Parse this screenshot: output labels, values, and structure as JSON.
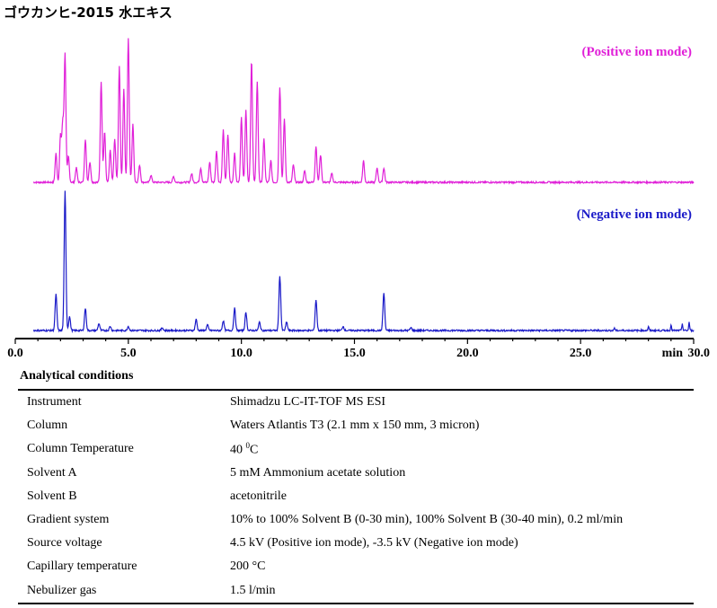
{
  "title": "ゴウカンヒ-2015 水エキス",
  "chart_data": {
    "type": "line",
    "x_axis": {
      "unit_label": "min",
      "range": [
        0,
        30
      ],
      "tick_values": [
        0,
        5,
        10,
        15,
        20,
        25,
        30
      ],
      "tick_labels": [
        "0.0",
        "5.0",
        "10.0",
        "15.0",
        "20.0",
        "25.0",
        "30.0"
      ]
    },
    "y_axis": {
      "ticks_shown": false
    },
    "series": [
      {
        "name": "(Positive ion mode)",
        "color": "#e020d8",
        "baseline_start": 0.8,
        "peaks": [
          [
            1.8,
            0.2
          ],
          [
            2.0,
            0.32
          ],
          [
            2.1,
            0.4
          ],
          [
            2.2,
            0.88
          ],
          [
            2.35,
            0.18
          ],
          [
            2.7,
            0.1
          ],
          [
            3.1,
            0.3
          ],
          [
            3.3,
            0.14
          ],
          [
            3.8,
            0.7
          ],
          [
            3.95,
            0.35
          ],
          [
            4.2,
            0.22
          ],
          [
            4.4,
            0.3
          ],
          [
            4.6,
            0.8
          ],
          [
            4.8,
            0.65
          ],
          [
            5.0,
            1.0
          ],
          [
            5.2,
            0.4
          ],
          [
            5.5,
            0.12
          ],
          [
            6.0,
            0.05
          ],
          [
            7.0,
            0.04
          ],
          [
            7.8,
            0.06
          ],
          [
            8.2,
            0.1
          ],
          [
            8.6,
            0.14
          ],
          [
            8.9,
            0.22
          ],
          [
            9.2,
            0.36
          ],
          [
            9.4,
            0.33
          ],
          [
            9.7,
            0.2
          ],
          [
            10.0,
            0.45
          ],
          [
            10.2,
            0.5
          ],
          [
            10.45,
            0.84
          ],
          [
            10.7,
            0.7
          ],
          [
            11.0,
            0.3
          ],
          [
            11.3,
            0.15
          ],
          [
            11.7,
            0.66
          ],
          [
            11.9,
            0.44
          ],
          [
            12.3,
            0.12
          ],
          [
            12.8,
            0.08
          ],
          [
            13.3,
            0.25
          ],
          [
            13.5,
            0.19
          ],
          [
            14.0,
            0.06
          ],
          [
            15.4,
            0.15
          ],
          [
            16.0,
            0.1
          ],
          [
            16.3,
            0.1
          ]
        ]
      },
      {
        "name": "(Negative ion mode)",
        "color": "#1a1ac8",
        "baseline_start": 0.8,
        "peaks": [
          [
            1.8,
            0.26
          ],
          [
            2.2,
            1.0
          ],
          [
            2.4,
            0.1
          ],
          [
            3.1,
            0.16
          ],
          [
            3.7,
            0.05
          ],
          [
            4.2,
            0.03
          ],
          [
            5.0,
            0.03
          ],
          [
            6.5,
            0.02
          ],
          [
            8.0,
            0.08
          ],
          [
            8.5,
            0.04
          ],
          [
            9.2,
            0.07
          ],
          [
            9.7,
            0.16
          ],
          [
            10.2,
            0.13
          ],
          [
            10.8,
            0.06
          ],
          [
            11.7,
            0.39
          ],
          [
            12.0,
            0.06
          ],
          [
            13.3,
            0.22
          ],
          [
            14.5,
            0.03
          ],
          [
            16.3,
            0.27
          ],
          [
            17.5,
            0.02
          ],
          [
            26.5,
            0.02
          ],
          [
            28.0,
            0.03
          ],
          [
            29.0,
            0.04
          ],
          [
            29.5,
            0.05
          ],
          [
            29.8,
            0.06
          ]
        ]
      }
    ]
  },
  "conditions": {
    "heading": "Analytical conditions",
    "rows": [
      {
        "label": "Instrument",
        "value": "Shimadzu LC-IT-TOF MS ESI"
      },
      {
        "label": "Column",
        "value": "Waters Atlantis T3 (2.1 mm x 150 mm, 3 micron)"
      },
      {
        "label": "Column Temperature",
        "value": "40 ",
        "sup": "0",
        "suffix": "C"
      },
      {
        "label": "Solvent A",
        "value": "5 mM Ammonium acetate solution"
      },
      {
        "label": "Solvent B",
        "value": "acetonitrile"
      },
      {
        "label": "Gradient system",
        "value": "10% to 100% Solvent B (0-30 min), 100% Solvent B (30-40 min), 0.2 ml/min"
      },
      {
        "label": "Source voltage",
        "value": "4.5 kV (Positive ion mode), -3.5 kV (Negative ion mode)"
      },
      {
        "label": "Capillary temperature",
        "value": "200 °C"
      },
      {
        "label": "Nebulizer gas",
        "value": "1.5 l/min"
      }
    ]
  }
}
